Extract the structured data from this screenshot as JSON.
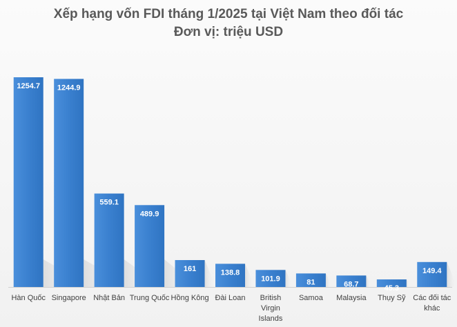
{
  "chart_data": {
    "type": "bar",
    "title": "Xếp hạng vốn FDI tháng 1/2025 tại Việt Nam theo đối tác",
    "subtitle": "Đơn vị: triệu USD",
    "categories": [
      [
        "Hàn Quốc"
      ],
      [
        "Singapore"
      ],
      [
        "Nhật Bản"
      ],
      [
        "Trung Quốc"
      ],
      [
        "Hồng Kông"
      ],
      [
        "Đài Loan"
      ],
      [
        "British",
        "Virgin",
        "Islands"
      ],
      [
        "Samoa"
      ],
      [
        "Malaysia"
      ],
      [
        "Thụy Sỹ"
      ],
      [
        "Các đối tác",
        "khác"
      ]
    ],
    "values": [
      1254.7,
      1244.9,
      559.1,
      489.9,
      161,
      138.8,
      101.9,
      81,
      68.7,
      45.3,
      149.4
    ],
    "ylim": [
      0,
      1300
    ],
    "grid": false,
    "legend": "none",
    "bar_color": "#3f86d3",
    "bar_color_light": "#5aa0e6",
    "value_label_color": "#ffffff"
  }
}
